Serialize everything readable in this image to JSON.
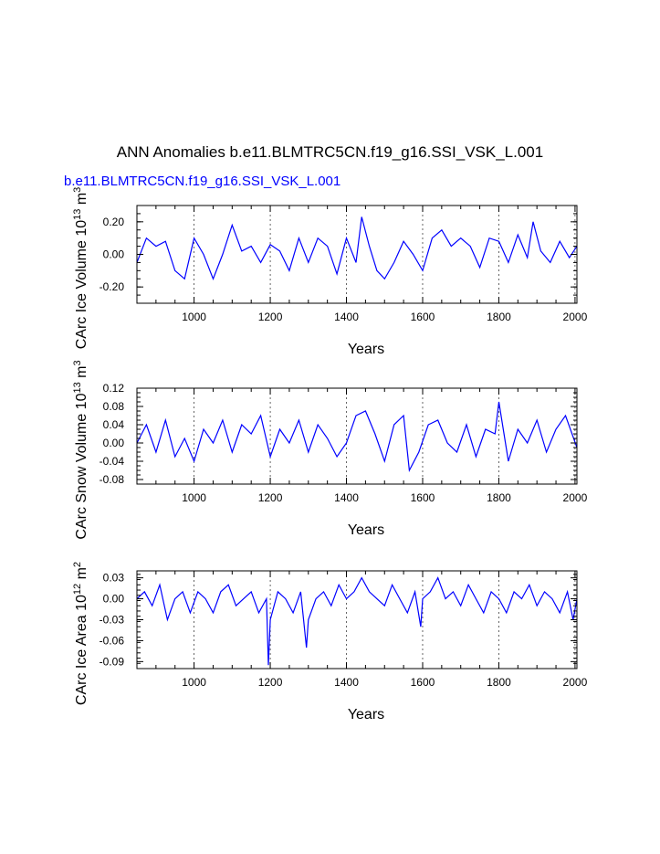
{
  "title": "ANN Anomalies b.e11.BLMTRC5CN.f19_g16.SSI_VSK_L.001",
  "subtitle": "b.e11.BLMTRC5CN.f19_g16.SSI_VSK_L.001",
  "colors": {
    "line": "#0000ff",
    "axis": "#000000",
    "grid": "#000000"
  },
  "chart_data": [
    {
      "type": "line",
      "ylabel": "CArc Ice Volume 10^13 m^3",
      "xlabel": "Years",
      "xlim": [
        850,
        2005
      ],
      "ylim": [
        -0.3,
        0.3
      ],
      "xticks": [
        1000,
        1200,
        1400,
        1600,
        1800,
        2000
      ],
      "yticks": [
        "-0.20",
        "0.00",
        "0.20"
      ],
      "ytick_values": [
        -0.2,
        0.0,
        0.2
      ],
      "grid": "vertical dashed at major x ticks",
      "series": [
        {
          "x": [
            850,
            875,
            900,
            925,
            950,
            975,
            1000,
            1025,
            1050,
            1075,
            1100,
            1125,
            1150,
            1175,
            1200,
            1225,
            1250,
            1275,
            1300,
            1325,
            1350,
            1375,
            1400,
            1425,
            1440,
            1460,
            1480,
            1500,
            1525,
            1550,
            1575,
            1600,
            1625,
            1650,
            1675,
            1700,
            1725,
            1750,
            1775,
            1800,
            1825,
            1850,
            1875,
            1890,
            1910,
            1935,
            1960,
            1985,
            2005
          ],
          "y": [
            -0.05,
            0.1,
            0.05,
            0.08,
            -0.1,
            -0.15,
            0.1,
            0.0,
            -0.15,
            0.0,
            0.18,
            0.02,
            0.05,
            -0.05,
            0.06,
            0.02,
            -0.1,
            0.1,
            -0.05,
            0.1,
            0.05,
            -0.12,
            0.1,
            -0.05,
            0.23,
            0.05,
            -0.1,
            -0.15,
            -0.05,
            0.08,
            0.0,
            -0.1,
            0.1,
            0.15,
            0.05,
            0.1,
            0.05,
            -0.08,
            0.1,
            0.08,
            -0.05,
            0.12,
            -0.02,
            0.2,
            0.02,
            -0.05,
            0.08,
            -0.02,
            0.05
          ]
        }
      ]
    },
    {
      "type": "line",
      "ylabel": "CArc Snow Volume 10^13 m^3",
      "xlabel": "Years",
      "xlim": [
        850,
        2005
      ],
      "ylim": [
        -0.09,
        0.12
      ],
      "xticks": [
        1000,
        1200,
        1400,
        1600,
        1800,
        2000
      ],
      "yticks": [
        "-0.08",
        "-0.04",
        "0.00",
        "0.04",
        "0.08",
        "0.12"
      ],
      "ytick_values": [
        -0.08,
        -0.04,
        0.0,
        0.04,
        0.08,
        0.12
      ],
      "grid": "vertical dashed at major x ticks",
      "series": [
        {
          "x": [
            850,
            875,
            900,
            925,
            950,
            975,
            1000,
            1025,
            1050,
            1075,
            1100,
            1125,
            1150,
            1175,
            1200,
            1225,
            1250,
            1275,
            1300,
            1325,
            1350,
            1375,
            1400,
            1425,
            1450,
            1475,
            1500,
            1525,
            1550,
            1565,
            1590,
            1615,
            1640,
            1665,
            1690,
            1715,
            1740,
            1765,
            1790,
            1800,
            1825,
            1850,
            1875,
            1900,
            1925,
            1950,
            1975,
            2005
          ],
          "y": [
            0.0,
            0.04,
            -0.02,
            0.05,
            -0.03,
            0.01,
            -0.04,
            0.03,
            0.0,
            0.05,
            -0.02,
            0.04,
            0.02,
            0.06,
            -0.03,
            0.03,
            0.0,
            0.05,
            -0.02,
            0.04,
            0.01,
            -0.03,
            0.0,
            0.06,
            0.07,
            0.02,
            -0.04,
            0.04,
            0.06,
            -0.06,
            -0.02,
            0.04,
            0.05,
            0.0,
            -0.02,
            0.04,
            -0.03,
            0.03,
            0.02,
            0.09,
            -0.04,
            0.03,
            0.0,
            0.05,
            -0.02,
            0.03,
            0.06,
            -0.01
          ]
        }
      ]
    },
    {
      "type": "line",
      "ylabel": "CArc Ice Area 10^12 m^2",
      "xlabel": "Years",
      "xlim": [
        850,
        2005
      ],
      "ylim": [
        -0.1,
        0.04
      ],
      "xticks": [
        1000,
        1200,
        1400,
        1600,
        1800,
        2000
      ],
      "yticks": [
        "-0.09",
        "-0.06",
        "-0.03",
        "0.00",
        "0.03"
      ],
      "ytick_values": [
        -0.09,
        -0.06,
        -0.03,
        0.0,
        0.03
      ],
      "grid": "vertical dashed at major x ticks",
      "series": [
        {
          "x": [
            850,
            870,
            890,
            910,
            930,
            950,
            970,
            990,
            1010,
            1030,
            1050,
            1070,
            1090,
            1110,
            1130,
            1150,
            1170,
            1190,
            1195,
            1200,
            1220,
            1240,
            1260,
            1280,
            1295,
            1300,
            1320,
            1340,
            1360,
            1380,
            1400,
            1420,
            1440,
            1460,
            1480,
            1500,
            1520,
            1540,
            1560,
            1580,
            1595,
            1600,
            1620,
            1640,
            1660,
            1680,
            1700,
            1720,
            1740,
            1760,
            1780,
            1800,
            1820,
            1840,
            1860,
            1880,
            1900,
            1920,
            1940,
            1960,
            1980,
            1995,
            2005
          ],
          "y": [
            0.0,
            0.01,
            -0.01,
            0.02,
            -0.03,
            0.0,
            0.01,
            -0.02,
            0.01,
            0.0,
            -0.02,
            0.01,
            0.02,
            -0.01,
            0.0,
            0.01,
            -0.02,
            0.0,
            -0.095,
            -0.03,
            0.01,
            0.0,
            -0.02,
            0.01,
            -0.07,
            -0.03,
            0.0,
            0.01,
            -0.01,
            0.02,
            0.0,
            0.01,
            0.03,
            0.01,
            0.0,
            -0.01,
            0.02,
            0.0,
            -0.02,
            0.01,
            -0.04,
            0.0,
            0.01,
            0.03,
            0.0,
            0.01,
            -0.01,
            0.02,
            0.0,
            -0.02,
            0.01,
            0.0,
            -0.02,
            0.01,
            0.0,
            0.02,
            -0.01,
            0.01,
            0.0,
            -0.02,
            0.01,
            -0.03,
            0.0
          ]
        }
      ]
    }
  ]
}
